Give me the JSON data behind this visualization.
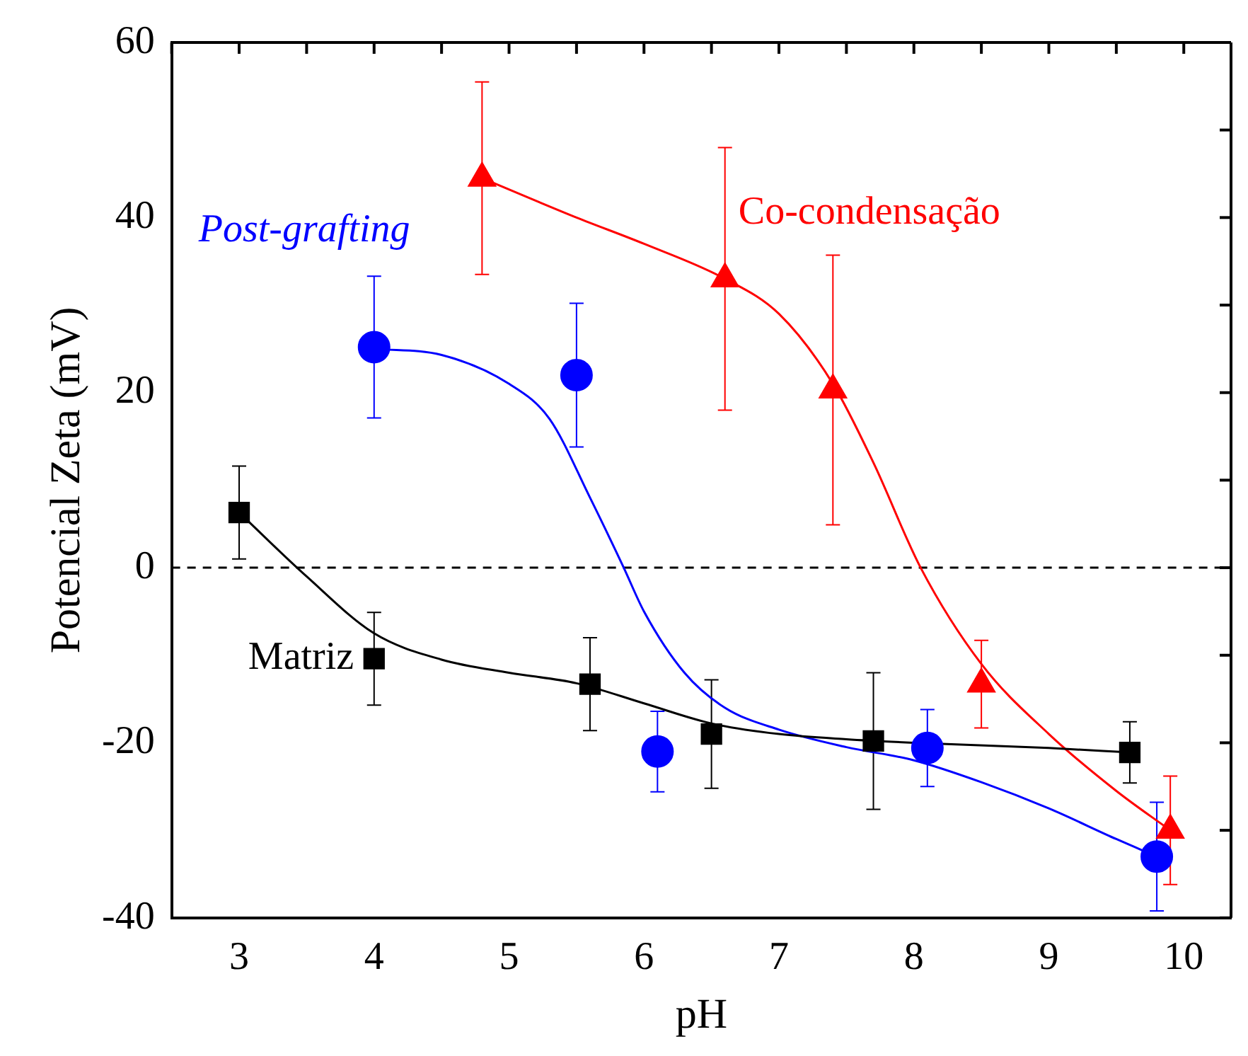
{
  "chart_data": {
    "type": "scatter",
    "xlabel": "pH",
    "ylabel": "Potencial Zeta (mV)",
    "xlim": [
      2.5,
      10.35
    ],
    "ylim": [
      -40,
      60
    ],
    "xticks": [
      {
        "value": 2.5,
        "label": null
      },
      3,
      {
        "value": 3.5,
        "label": null
      },
      4,
      {
        "value": 4.5,
        "label": null
      },
      5,
      {
        "value": 5.5,
        "label": null
      },
      6,
      {
        "value": 6.5,
        "label": null
      },
      7,
      {
        "value": 7.5,
        "label": null
      },
      8,
      {
        "value": 8.5,
        "label": null
      },
      9,
      {
        "value": 9.5,
        "label": null
      },
      10
    ],
    "yticks": [
      -40,
      {
        "value": -30,
        "label": null
      },
      -20,
      {
        "value": -10,
        "label": null
      },
      0,
      {
        "value": 10,
        "label": null
      },
      20,
      {
        "value": 30,
        "label": null
      },
      40,
      {
        "value": 50,
        "label": null
      },
      60
    ],
    "grid": false,
    "legend": false,
    "ref_lines": [
      {
        "axis": "y",
        "value": 0,
        "line_style": "dashed",
        "color": "#000000"
      }
    ],
    "series": [
      {
        "name": "Matriz",
        "color": "#000000",
        "marker": "square",
        "x": [
          3,
          4,
          5.6,
          6.5,
          7.7,
          9.6
        ],
        "values": [
          6.3,
          -10.4,
          -13.3,
          -19,
          -19.8,
          -21.1
        ],
        "errors": [
          5.3,
          5.3,
          5.3,
          6.2,
          7.8,
          3.5
        ]
      },
      {
        "name": "Post-grafting",
        "color": "#0000ff",
        "marker": "circle",
        "x": [
          4,
          5.5,
          6.1,
          8.1,
          9.8
        ],
        "values": [
          25.2,
          22,
          -21,
          -20.6,
          -33
        ],
        "errors": [
          8.1,
          8.2,
          4.6,
          4.4,
          6.2
        ]
      },
      {
        "name": "Co-condensação",
        "color": "#ff0000",
        "marker": "triangle",
        "x": [
          4.8,
          6.6,
          7.4,
          8.5,
          9.9
        ],
        "values": [
          44.5,
          33,
          20.3,
          -13.3,
          -30
        ],
        "errors": [
          11,
          15,
          15.4,
          5,
          6.2
        ]
      },
      {
        "type": "line",
        "color": "#000000",
        "marker": "none",
        "x": [
          3,
          3.5,
          4,
          4.5,
          5,
          5.5,
          6,
          6.5,
          7,
          7.5,
          8,
          9,
          9.6
        ],
        "values": [
          6.3,
          -1,
          -7.5,
          -10.5,
          -12,
          -13.2,
          -15.5,
          -17.8,
          -19,
          -19.6,
          -20,
          -20.6,
          -21.1
        ]
      },
      {
        "type": "line",
        "color": "#0000ff",
        "marker": "none",
        "x": [
          4,
          4.5,
          5,
          5.3,
          5.6,
          5.85,
          6,
          6.3,
          6.6,
          7,
          7.5,
          8,
          8.5,
          9,
          9.5,
          9.8
        ],
        "values": [
          25,
          24.3,
          21,
          17,
          8,
          0,
          -5,
          -12,
          -16,
          -18.5,
          -20.5,
          -22,
          -24.5,
          -27.5,
          -31,
          -33
        ]
      },
      {
        "type": "line",
        "color": "#ff0000",
        "marker": "none",
        "x": [
          4.8,
          5.5,
          6,
          6.6,
          7,
          7.4,
          7.7,
          8.05,
          8.5,
          9,
          9.5,
          9.9
        ],
        "values": [
          44.5,
          40,
          37,
          33,
          29,
          21,
          12,
          0,
          -11,
          -19,
          -25.5,
          -30
        ]
      }
    ]
  }
}
